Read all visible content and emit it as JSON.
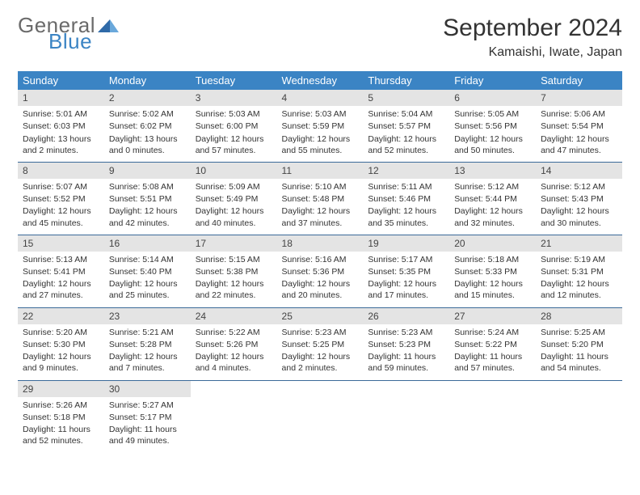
{
  "logo": {
    "general": "General",
    "blue": "Blue"
  },
  "title": "September 2024",
  "location": "Kamaishi, Iwate, Japan",
  "colors": {
    "header_bg": "#3b84c4",
    "header_text": "#ffffff",
    "daynum_bg": "#e4e4e4",
    "row_border": "#3b6a99",
    "logo_gray": "#6a6a6a",
    "logo_blue": "#3b84c4"
  },
  "weekdays": [
    "Sunday",
    "Monday",
    "Tuesday",
    "Wednesday",
    "Thursday",
    "Friday",
    "Saturday"
  ],
  "weeks": [
    [
      {
        "n": "1",
        "sr": "Sunrise: 5:01 AM",
        "ss": "Sunset: 6:03 PM",
        "dl": "Daylight: 13 hours and 2 minutes."
      },
      {
        "n": "2",
        "sr": "Sunrise: 5:02 AM",
        "ss": "Sunset: 6:02 PM",
        "dl": "Daylight: 13 hours and 0 minutes."
      },
      {
        "n": "3",
        "sr": "Sunrise: 5:03 AM",
        "ss": "Sunset: 6:00 PM",
        "dl": "Daylight: 12 hours and 57 minutes."
      },
      {
        "n": "4",
        "sr": "Sunrise: 5:03 AM",
        "ss": "Sunset: 5:59 PM",
        "dl": "Daylight: 12 hours and 55 minutes."
      },
      {
        "n": "5",
        "sr": "Sunrise: 5:04 AM",
        "ss": "Sunset: 5:57 PM",
        "dl": "Daylight: 12 hours and 52 minutes."
      },
      {
        "n": "6",
        "sr": "Sunrise: 5:05 AM",
        "ss": "Sunset: 5:56 PM",
        "dl": "Daylight: 12 hours and 50 minutes."
      },
      {
        "n": "7",
        "sr": "Sunrise: 5:06 AM",
        "ss": "Sunset: 5:54 PM",
        "dl": "Daylight: 12 hours and 47 minutes."
      }
    ],
    [
      {
        "n": "8",
        "sr": "Sunrise: 5:07 AM",
        "ss": "Sunset: 5:52 PM",
        "dl": "Daylight: 12 hours and 45 minutes."
      },
      {
        "n": "9",
        "sr": "Sunrise: 5:08 AM",
        "ss": "Sunset: 5:51 PM",
        "dl": "Daylight: 12 hours and 42 minutes."
      },
      {
        "n": "10",
        "sr": "Sunrise: 5:09 AM",
        "ss": "Sunset: 5:49 PM",
        "dl": "Daylight: 12 hours and 40 minutes."
      },
      {
        "n": "11",
        "sr": "Sunrise: 5:10 AM",
        "ss": "Sunset: 5:48 PM",
        "dl": "Daylight: 12 hours and 37 minutes."
      },
      {
        "n": "12",
        "sr": "Sunrise: 5:11 AM",
        "ss": "Sunset: 5:46 PM",
        "dl": "Daylight: 12 hours and 35 minutes."
      },
      {
        "n": "13",
        "sr": "Sunrise: 5:12 AM",
        "ss": "Sunset: 5:44 PM",
        "dl": "Daylight: 12 hours and 32 minutes."
      },
      {
        "n": "14",
        "sr": "Sunrise: 5:12 AM",
        "ss": "Sunset: 5:43 PM",
        "dl": "Daylight: 12 hours and 30 minutes."
      }
    ],
    [
      {
        "n": "15",
        "sr": "Sunrise: 5:13 AM",
        "ss": "Sunset: 5:41 PM",
        "dl": "Daylight: 12 hours and 27 minutes."
      },
      {
        "n": "16",
        "sr": "Sunrise: 5:14 AM",
        "ss": "Sunset: 5:40 PM",
        "dl": "Daylight: 12 hours and 25 minutes."
      },
      {
        "n": "17",
        "sr": "Sunrise: 5:15 AM",
        "ss": "Sunset: 5:38 PM",
        "dl": "Daylight: 12 hours and 22 minutes."
      },
      {
        "n": "18",
        "sr": "Sunrise: 5:16 AM",
        "ss": "Sunset: 5:36 PM",
        "dl": "Daylight: 12 hours and 20 minutes."
      },
      {
        "n": "19",
        "sr": "Sunrise: 5:17 AM",
        "ss": "Sunset: 5:35 PM",
        "dl": "Daylight: 12 hours and 17 minutes."
      },
      {
        "n": "20",
        "sr": "Sunrise: 5:18 AM",
        "ss": "Sunset: 5:33 PM",
        "dl": "Daylight: 12 hours and 15 minutes."
      },
      {
        "n": "21",
        "sr": "Sunrise: 5:19 AM",
        "ss": "Sunset: 5:31 PM",
        "dl": "Daylight: 12 hours and 12 minutes."
      }
    ],
    [
      {
        "n": "22",
        "sr": "Sunrise: 5:20 AM",
        "ss": "Sunset: 5:30 PM",
        "dl": "Daylight: 12 hours and 9 minutes."
      },
      {
        "n": "23",
        "sr": "Sunrise: 5:21 AM",
        "ss": "Sunset: 5:28 PM",
        "dl": "Daylight: 12 hours and 7 minutes."
      },
      {
        "n": "24",
        "sr": "Sunrise: 5:22 AM",
        "ss": "Sunset: 5:26 PM",
        "dl": "Daylight: 12 hours and 4 minutes."
      },
      {
        "n": "25",
        "sr": "Sunrise: 5:23 AM",
        "ss": "Sunset: 5:25 PM",
        "dl": "Daylight: 12 hours and 2 minutes."
      },
      {
        "n": "26",
        "sr": "Sunrise: 5:23 AM",
        "ss": "Sunset: 5:23 PM",
        "dl": "Daylight: 11 hours and 59 minutes."
      },
      {
        "n": "27",
        "sr": "Sunrise: 5:24 AM",
        "ss": "Sunset: 5:22 PM",
        "dl": "Daylight: 11 hours and 57 minutes."
      },
      {
        "n": "28",
        "sr": "Sunrise: 5:25 AM",
        "ss": "Sunset: 5:20 PM",
        "dl": "Daylight: 11 hours and 54 minutes."
      }
    ],
    [
      {
        "n": "29",
        "sr": "Sunrise: 5:26 AM",
        "ss": "Sunset: 5:18 PM",
        "dl": "Daylight: 11 hours and 52 minutes."
      },
      {
        "n": "30",
        "sr": "Sunrise: 5:27 AM",
        "ss": "Sunset: 5:17 PM",
        "dl": "Daylight: 11 hours and 49 minutes."
      },
      null,
      null,
      null,
      null,
      null
    ]
  ]
}
